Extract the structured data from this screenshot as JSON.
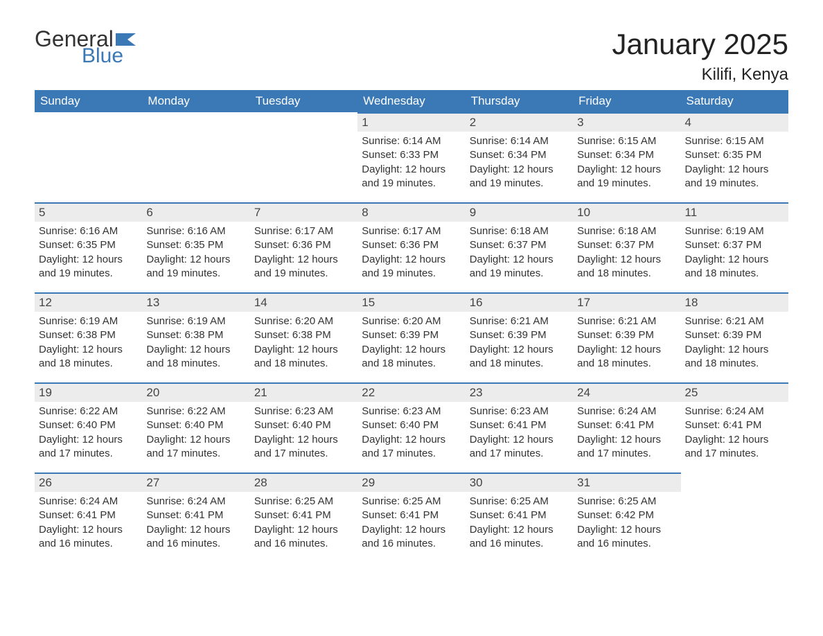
{
  "colors": {
    "header_bg": "#3b78b6",
    "header_text": "#ffffff",
    "daynum_bg": "#ececec",
    "cell_border_top": "#3b78b6",
    "body_text": "#333333",
    "logo_blue": "#3b78b6",
    "page_bg": "#ffffff"
  },
  "logo": {
    "line1": "General",
    "line2": "Blue"
  },
  "title": "January 2025",
  "location": "Kilifi, Kenya",
  "day_headers": [
    "Sunday",
    "Monday",
    "Tuesday",
    "Wednesday",
    "Thursday",
    "Friday",
    "Saturday"
  ],
  "weeks": [
    [
      {
        "empty": true
      },
      {
        "empty": true
      },
      {
        "empty": true
      },
      {
        "day": "1",
        "sunrise": "Sunrise: 6:14 AM",
        "sunset": "Sunset: 6:33 PM",
        "daylight1": "Daylight: 12 hours",
        "daylight2": "and 19 minutes."
      },
      {
        "day": "2",
        "sunrise": "Sunrise: 6:14 AM",
        "sunset": "Sunset: 6:34 PM",
        "daylight1": "Daylight: 12 hours",
        "daylight2": "and 19 minutes."
      },
      {
        "day": "3",
        "sunrise": "Sunrise: 6:15 AM",
        "sunset": "Sunset: 6:34 PM",
        "daylight1": "Daylight: 12 hours",
        "daylight2": "and 19 minutes."
      },
      {
        "day": "4",
        "sunrise": "Sunrise: 6:15 AM",
        "sunset": "Sunset: 6:35 PM",
        "daylight1": "Daylight: 12 hours",
        "daylight2": "and 19 minutes."
      }
    ],
    [
      {
        "day": "5",
        "sunrise": "Sunrise: 6:16 AM",
        "sunset": "Sunset: 6:35 PM",
        "daylight1": "Daylight: 12 hours",
        "daylight2": "and 19 minutes."
      },
      {
        "day": "6",
        "sunrise": "Sunrise: 6:16 AM",
        "sunset": "Sunset: 6:35 PM",
        "daylight1": "Daylight: 12 hours",
        "daylight2": "and 19 minutes."
      },
      {
        "day": "7",
        "sunrise": "Sunrise: 6:17 AM",
        "sunset": "Sunset: 6:36 PM",
        "daylight1": "Daylight: 12 hours",
        "daylight2": "and 19 minutes."
      },
      {
        "day": "8",
        "sunrise": "Sunrise: 6:17 AM",
        "sunset": "Sunset: 6:36 PM",
        "daylight1": "Daylight: 12 hours",
        "daylight2": "and 19 minutes."
      },
      {
        "day": "9",
        "sunrise": "Sunrise: 6:18 AM",
        "sunset": "Sunset: 6:37 PM",
        "daylight1": "Daylight: 12 hours",
        "daylight2": "and 19 minutes."
      },
      {
        "day": "10",
        "sunrise": "Sunrise: 6:18 AM",
        "sunset": "Sunset: 6:37 PM",
        "daylight1": "Daylight: 12 hours",
        "daylight2": "and 18 minutes."
      },
      {
        "day": "11",
        "sunrise": "Sunrise: 6:19 AM",
        "sunset": "Sunset: 6:37 PM",
        "daylight1": "Daylight: 12 hours",
        "daylight2": "and 18 minutes."
      }
    ],
    [
      {
        "day": "12",
        "sunrise": "Sunrise: 6:19 AM",
        "sunset": "Sunset: 6:38 PM",
        "daylight1": "Daylight: 12 hours",
        "daylight2": "and 18 minutes."
      },
      {
        "day": "13",
        "sunrise": "Sunrise: 6:19 AM",
        "sunset": "Sunset: 6:38 PM",
        "daylight1": "Daylight: 12 hours",
        "daylight2": "and 18 minutes."
      },
      {
        "day": "14",
        "sunrise": "Sunrise: 6:20 AM",
        "sunset": "Sunset: 6:38 PM",
        "daylight1": "Daylight: 12 hours",
        "daylight2": "and 18 minutes."
      },
      {
        "day": "15",
        "sunrise": "Sunrise: 6:20 AM",
        "sunset": "Sunset: 6:39 PM",
        "daylight1": "Daylight: 12 hours",
        "daylight2": "and 18 minutes."
      },
      {
        "day": "16",
        "sunrise": "Sunrise: 6:21 AM",
        "sunset": "Sunset: 6:39 PM",
        "daylight1": "Daylight: 12 hours",
        "daylight2": "and 18 minutes."
      },
      {
        "day": "17",
        "sunrise": "Sunrise: 6:21 AM",
        "sunset": "Sunset: 6:39 PM",
        "daylight1": "Daylight: 12 hours",
        "daylight2": "and 18 minutes."
      },
      {
        "day": "18",
        "sunrise": "Sunrise: 6:21 AM",
        "sunset": "Sunset: 6:39 PM",
        "daylight1": "Daylight: 12 hours",
        "daylight2": "and 18 minutes."
      }
    ],
    [
      {
        "day": "19",
        "sunrise": "Sunrise: 6:22 AM",
        "sunset": "Sunset: 6:40 PM",
        "daylight1": "Daylight: 12 hours",
        "daylight2": "and 17 minutes."
      },
      {
        "day": "20",
        "sunrise": "Sunrise: 6:22 AM",
        "sunset": "Sunset: 6:40 PM",
        "daylight1": "Daylight: 12 hours",
        "daylight2": "and 17 minutes."
      },
      {
        "day": "21",
        "sunrise": "Sunrise: 6:23 AM",
        "sunset": "Sunset: 6:40 PM",
        "daylight1": "Daylight: 12 hours",
        "daylight2": "and 17 minutes."
      },
      {
        "day": "22",
        "sunrise": "Sunrise: 6:23 AM",
        "sunset": "Sunset: 6:40 PM",
        "daylight1": "Daylight: 12 hours",
        "daylight2": "and 17 minutes."
      },
      {
        "day": "23",
        "sunrise": "Sunrise: 6:23 AM",
        "sunset": "Sunset: 6:41 PM",
        "daylight1": "Daylight: 12 hours",
        "daylight2": "and 17 minutes."
      },
      {
        "day": "24",
        "sunrise": "Sunrise: 6:24 AM",
        "sunset": "Sunset: 6:41 PM",
        "daylight1": "Daylight: 12 hours",
        "daylight2": "and 17 minutes."
      },
      {
        "day": "25",
        "sunrise": "Sunrise: 6:24 AM",
        "sunset": "Sunset: 6:41 PM",
        "daylight1": "Daylight: 12 hours",
        "daylight2": "and 17 minutes."
      }
    ],
    [
      {
        "day": "26",
        "sunrise": "Sunrise: 6:24 AM",
        "sunset": "Sunset: 6:41 PM",
        "daylight1": "Daylight: 12 hours",
        "daylight2": "and 16 minutes."
      },
      {
        "day": "27",
        "sunrise": "Sunrise: 6:24 AM",
        "sunset": "Sunset: 6:41 PM",
        "daylight1": "Daylight: 12 hours",
        "daylight2": "and 16 minutes."
      },
      {
        "day": "28",
        "sunrise": "Sunrise: 6:25 AM",
        "sunset": "Sunset: 6:41 PM",
        "daylight1": "Daylight: 12 hours",
        "daylight2": "and 16 minutes."
      },
      {
        "day": "29",
        "sunrise": "Sunrise: 6:25 AM",
        "sunset": "Sunset: 6:41 PM",
        "daylight1": "Daylight: 12 hours",
        "daylight2": "and 16 minutes."
      },
      {
        "day": "30",
        "sunrise": "Sunrise: 6:25 AM",
        "sunset": "Sunset: 6:41 PM",
        "daylight1": "Daylight: 12 hours",
        "daylight2": "and 16 minutes."
      },
      {
        "day": "31",
        "sunrise": "Sunrise: 6:25 AM",
        "sunset": "Sunset: 6:42 PM",
        "daylight1": "Daylight: 12 hours",
        "daylight2": "and 16 minutes."
      },
      {
        "empty": true
      }
    ]
  ]
}
